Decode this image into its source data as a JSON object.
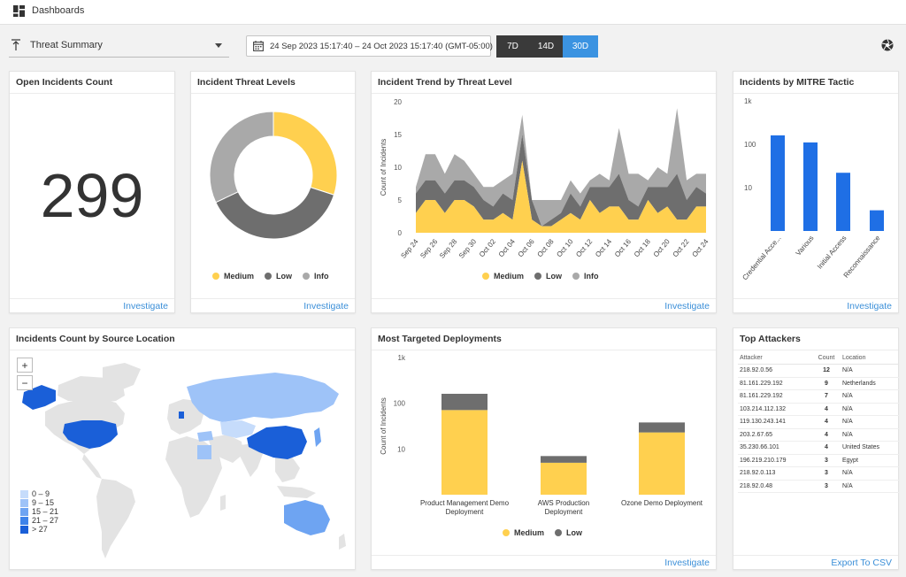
{
  "app": {
    "title": "Dashboards"
  },
  "controls": {
    "dashboard_select": "Threat Summary",
    "date_range": "24 Sep 2023 15:17:40 – 24 Oct 2023 15:17:40 (GMT-05:00)",
    "range_buttons": [
      "7D",
      "14D",
      "30D"
    ],
    "active_range": "30D"
  },
  "colors": {
    "medium": "#ffd04f",
    "low": "#6e6e6e",
    "info": "#a9a9a9",
    "bar": "#1f6fe5",
    "link": "#3b8fd8"
  },
  "panels": {
    "open_incidents": {
      "title": "Open Incidents Count",
      "value": "299",
      "link": "Investigate"
    },
    "threat_levels": {
      "title": "Incident Threat Levels",
      "link": "Investigate"
    },
    "trend": {
      "title": "Incident Trend by Threat Level",
      "link": "Investigate"
    },
    "mitre": {
      "title": "Incidents by MITRE Tactic",
      "link": "Investigate"
    },
    "source_location": {
      "title": "Incidents Count by Source Location",
      "zoom_in": "+",
      "zoom_out": "−",
      "legend": [
        "0 – 9",
        "9 – 15",
        "15 – 21",
        "21 – 27",
        "> 27"
      ],
      "legend_colors": [
        "#c6dcfb",
        "#9ec3f8",
        "#6ea4f2",
        "#3e83ea",
        "#1a5fd8"
      ]
    },
    "deployments": {
      "title": "Most Targeted Deployments",
      "link": "Investigate"
    },
    "attackers": {
      "title": "Top Attackers",
      "link": "Export To CSV",
      "columns": [
        "Attacker",
        "Count",
        "Location"
      ],
      "rows": [
        [
          "218.92.0.56",
          "12",
          "N/A"
        ],
        [
          "81.161.229.192",
          "9",
          "Netherlands"
        ],
        [
          "81.161.229.192",
          "7",
          "N/A"
        ],
        [
          "103.214.112.132",
          "4",
          "N/A"
        ],
        [
          "119.130.243.141",
          "4",
          "N/A"
        ],
        [
          "203.2.67.65",
          "4",
          "N/A"
        ],
        [
          "35.230.66.101",
          "4",
          "United States"
        ],
        [
          "196.219.210.179",
          "3",
          "Egypt"
        ],
        [
          "218.92.0.113",
          "3",
          "N/A"
        ],
        [
          "218.92.0.48",
          "3",
          "N/A"
        ]
      ]
    }
  },
  "chart_data": [
    {
      "type": "pie",
      "title": "Incident Threat Levels",
      "labels": [
        "Medium",
        "Low",
        "Info"
      ],
      "values": [
        30,
        38,
        32
      ],
      "colors": [
        "#ffd04f",
        "#6e6e6e",
        "#a9a9a9"
      ]
    },
    {
      "type": "area",
      "title": "Incident Trend by Threat Level",
      "ylabel": "Count of Incidents",
      "ylim": [
        0,
        20
      ],
      "yticks": [
        0,
        5,
        10,
        15,
        20
      ],
      "x_tick_labels": [
        "Sep 24",
        "Sep 26",
        "Sep 28",
        "Sep 30",
        "Oct 02",
        "Oct 04",
        "Oct 06",
        "Oct 08",
        "Oct 10",
        "Oct 12",
        "Oct 14",
        "Oct 16",
        "Oct 18",
        "Oct 20",
        "Oct 22",
        "Oct 24"
      ],
      "x": [
        "Sep 24",
        "Sep 25",
        "Sep 26",
        "Sep 27",
        "Sep 28",
        "Sep 29",
        "Sep 30",
        "Oct 01",
        "Oct 02",
        "Oct 03",
        "Oct 04",
        "Oct 05",
        "Oct 06",
        "Oct 07",
        "Oct 08",
        "Oct 09",
        "Oct 10",
        "Oct 11",
        "Oct 12",
        "Oct 13",
        "Oct 14",
        "Oct 15",
        "Oct 16",
        "Oct 17",
        "Oct 18",
        "Oct 19",
        "Oct 20",
        "Oct 21",
        "Oct 22",
        "Oct 23",
        "Oct 24"
      ],
      "stacked": true,
      "series": [
        {
          "name": "Medium",
          "values": [
            3,
            5,
            5,
            3,
            5,
            5,
            4,
            2,
            2,
            3,
            2,
            11,
            2,
            1,
            1,
            2,
            3,
            2,
            5,
            3,
            4,
            4,
            2,
            2,
            5,
            3,
            4,
            2,
            2,
            4,
            4
          ]
        },
        {
          "name": "Low",
          "values": [
            3,
            3,
            3,
            3,
            3,
            3,
            3,
            3,
            2,
            3,
            3,
            4,
            3,
            0,
            1,
            1,
            3,
            2,
            2,
            4,
            3,
            5,
            3,
            2,
            2,
            4,
            3,
            7,
            3,
            3,
            2
          ]
        },
        {
          "name": "Info",
          "values": [
            1,
            4,
            4,
            3,
            4,
            3,
            2,
            2,
            3,
            2,
            4,
            3,
            0,
            4,
            3,
            2,
            2,
            2,
            1,
            2,
            1,
            7,
            4,
            5,
            1,
            3,
            2,
            10,
            3,
            2,
            3
          ]
        }
      ],
      "colors": [
        "#ffd04f",
        "#6e6e6e",
        "#a9a9a9"
      ]
    },
    {
      "type": "bar",
      "title": "Incidents by MITRE Tactic",
      "log_scale": true,
      "ylim": [
        1,
        1000
      ],
      "ytick_labels": [
        "10",
        "100",
        "1k"
      ],
      "categories": [
        "Credential Access",
        "Various",
        "Initial Access",
        "Reconnaissance"
      ],
      "category_labels": [
        "Credential Acce...",
        "Various",
        "Initial Access",
        "Reconnaissance"
      ],
      "values": [
        160,
        110,
        22,
        3
      ]
    },
    {
      "type": "bar",
      "title": "Most Targeted Deployments",
      "ylabel": "Count of Incidents",
      "log_scale": true,
      "stacked": true,
      "ylim": [
        1,
        1000
      ],
      "ytick_labels": [
        "10",
        "100",
        "1k"
      ],
      "categories": [
        "Product Management Demo Deployment",
        "AWS Production Deployment",
        "Ozone Demo Deployment"
      ],
      "series": [
        {
          "name": "Medium",
          "values": [
            70,
            4,
            22
          ]
        },
        {
          "name": "Low",
          "values": [
            90,
            2,
            15
          ]
        }
      ],
      "colors": [
        "#ffd04f",
        "#6e6e6e"
      ]
    }
  ]
}
